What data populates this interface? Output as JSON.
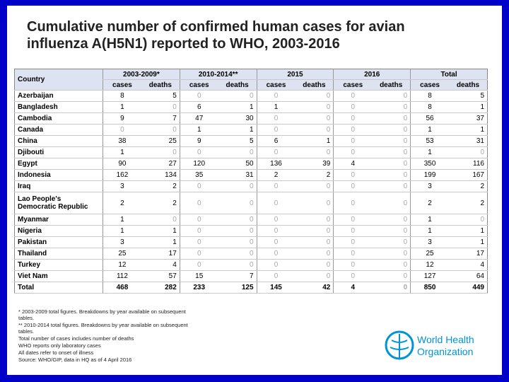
{
  "header": {
    "title": "Cumulative number of confirmed human cases for avian influenza A(H5N1) reported to WHO, 2003-2016"
  },
  "table": {
    "country_header": "Country",
    "periods": [
      "2003-2009*",
      "2010-2014**",
      "2015",
      "2016",
      "Total"
    ],
    "subheaders": [
      "cases",
      "deaths"
    ],
    "rows": [
      {
        "country": "Azerbaijan",
        "values": [
          8,
          5,
          0,
          0,
          0,
          0,
          0,
          0,
          8,
          5
        ]
      },
      {
        "country": "Bangladesh",
        "values": [
          1,
          0,
          6,
          1,
          1,
          0,
          0,
          0,
          8,
          1
        ]
      },
      {
        "country": "Cambodia",
        "values": [
          9,
          7,
          47,
          30,
          0,
          0,
          0,
          0,
          56,
          37
        ]
      },
      {
        "country": "Canada",
        "values": [
          0,
          0,
          1,
          1,
          0,
          0,
          0,
          0,
          1,
          1
        ]
      },
      {
        "country": "China",
        "values": [
          38,
          25,
          9,
          5,
          6,
          1,
          0,
          0,
          53,
          31
        ]
      },
      {
        "country": "Djibouti",
        "values": [
          1,
          0,
          0,
          0,
          0,
          0,
          0,
          0,
          1,
          0
        ]
      },
      {
        "country": "Egypt",
        "values": [
          90,
          27,
          120,
          50,
          136,
          39,
          4,
          0,
          350,
          116
        ]
      },
      {
        "country": "Indonesia",
        "values": [
          162,
          134,
          35,
          31,
          2,
          2,
          0,
          0,
          199,
          167
        ]
      },
      {
        "country": "Iraq",
        "values": [
          3,
          2,
          0,
          0,
          0,
          0,
          0,
          0,
          3,
          2
        ]
      },
      {
        "country": "Lao People's Democratic Republic",
        "values": [
          2,
          2,
          0,
          0,
          0,
          0,
          0,
          0,
          2,
          2
        ]
      },
      {
        "country": "Myanmar",
        "values": [
          1,
          0,
          0,
          0,
          0,
          0,
          0,
          0,
          1,
          0
        ]
      },
      {
        "country": "Nigeria",
        "values": [
          1,
          1,
          0,
          0,
          0,
          0,
          0,
          0,
          1,
          1
        ]
      },
      {
        "country": "Pakistan",
        "values": [
          3,
          1,
          0,
          0,
          0,
          0,
          0,
          0,
          3,
          1
        ]
      },
      {
        "country": "Thailand",
        "values": [
          25,
          17,
          0,
          0,
          0,
          0,
          0,
          0,
          25,
          17
        ]
      },
      {
        "country": "Turkey",
        "values": [
          12,
          4,
          0,
          0,
          0,
          0,
          0,
          0,
          12,
          4
        ]
      },
      {
        "country": "Viet Nam",
        "values": [
          112,
          57,
          15,
          7,
          0,
          0,
          0,
          0,
          127,
          64
        ]
      },
      {
        "country": "Total",
        "values": [
          468,
          282,
          233,
          125,
          145,
          42,
          4,
          0,
          850,
          449
        ]
      }
    ]
  },
  "notes": [
    "* 2003-2009 total figures. Breakdowns by year available on subsequent tables.",
    "** 2010-2014 total figures. Breakdowns by year available on subsequent tables.",
    "Total number of cases includes number of deaths",
    "WHO reports only laboratory cases",
    "All dates refer to onset of illness",
    "Source: WHO/GIP, data in HQ as of 4 April 2016"
  ],
  "logo": [
    "World Health",
    "Organization"
  ]
}
